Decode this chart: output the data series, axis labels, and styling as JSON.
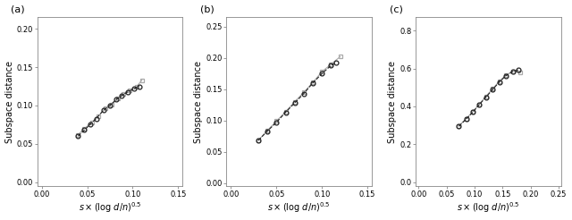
{
  "panels": [
    {
      "label": "(a)",
      "xlim": [
        -0.005,
        0.155
      ],
      "ylim": [
        -0.005,
        0.215
      ],
      "xticks": [
        0.0,
        0.05,
        0.1,
        0.15
      ],
      "yticks": [
        0.0,
        0.05,
        0.1,
        0.15,
        0.2
      ],
      "series": [
        {
          "x": [
            0.04,
            0.047,
            0.053,
            0.06,
            0.068,
            0.075,
            0.082,
            0.088,
            0.095,
            0.102,
            0.107
          ],
          "y": [
            0.06,
            0.068,
            0.075,
            0.083,
            0.094,
            0.1,
            0.108,
            0.113,
            0.118,
            0.122,
            0.125
          ],
          "color": "#222222",
          "marker": "o",
          "markersize": 3.5,
          "linewidth": 0.8,
          "linestyle": "--"
        },
        {
          "x": [
            0.04,
            0.047,
            0.055,
            0.062,
            0.07,
            0.077,
            0.084,
            0.09,
            0.097,
            0.104,
            0.11
          ],
          "y": [
            0.062,
            0.07,
            0.078,
            0.086,
            0.096,
            0.101,
            0.109,
            0.115,
            0.12,
            0.124,
            0.133
          ],
          "color": "#aaaaaa",
          "marker": "s",
          "markersize": 3.5,
          "linewidth": 0.8,
          "linestyle": "-"
        }
      ]
    },
    {
      "label": "(b)",
      "xlim": [
        -0.005,
        0.155
      ],
      "ylim": [
        -0.005,
        0.265
      ],
      "xticks": [
        0.0,
        0.05,
        0.1,
        0.15
      ],
      "yticks": [
        0.0,
        0.05,
        0.1,
        0.15,
        0.2,
        0.25
      ],
      "series": [
        {
          "x": [
            0.03,
            0.04,
            0.05,
            0.06,
            0.07,
            0.08,
            0.09,
            0.1,
            0.11,
            0.115
          ],
          "y": [
            0.068,
            0.083,
            0.097,
            0.113,
            0.128,
            0.143,
            0.16,
            0.175,
            0.188,
            0.192
          ],
          "color": "#222222",
          "marker": "o",
          "markersize": 3.5,
          "linewidth": 0.8,
          "linestyle": "--"
        },
        {
          "x": [
            0.03,
            0.04,
            0.05,
            0.06,
            0.07,
            0.08,
            0.09,
            0.1,
            0.11,
            0.12
          ],
          "y": [
            0.068,
            0.084,
            0.099,
            0.114,
            0.13,
            0.145,
            0.161,
            0.178,
            0.19,
            0.202
          ],
          "color": "#aaaaaa",
          "marker": "s",
          "markersize": 3.5,
          "linewidth": 0.8,
          "linestyle": "-"
        }
      ]
    },
    {
      "label": "(c)",
      "xlim": [
        -0.005,
        0.255
      ],
      "ylim": [
        -0.02,
        0.87
      ],
      "xticks": [
        0.0,
        0.05,
        0.1,
        0.15,
        0.2,
        0.25
      ],
      "yticks": [
        0.0,
        0.2,
        0.4,
        0.6,
        0.8
      ],
      "series": [
        {
          "x": [
            0.072,
            0.085,
            0.097,
            0.108,
            0.12,
            0.132,
            0.144,
            0.156,
            0.168,
            0.178
          ],
          "y": [
            0.295,
            0.333,
            0.37,
            0.408,
            0.448,
            0.488,
            0.528,
            0.562,
            0.583,
            0.592
          ],
          "color": "#222222",
          "marker": "o",
          "markersize": 3.5,
          "linewidth": 0.8,
          "linestyle": "--"
        },
        {
          "x": [
            0.072,
            0.085,
            0.097,
            0.108,
            0.12,
            0.132,
            0.144,
            0.156,
            0.168,
            0.182
          ],
          "y": [
            0.298,
            0.336,
            0.373,
            0.411,
            0.452,
            0.492,
            0.532,
            0.565,
            0.585,
            0.578
          ],
          "color": "#aaaaaa",
          "marker": "s",
          "markersize": 3.5,
          "linewidth": 0.8,
          "linestyle": "-"
        }
      ]
    }
  ],
  "ylabel": "Subspace distance",
  "xlabel_base": "s × (log d/n)",
  "background_color": "#ffffff",
  "figure_facecolor": "#ffffff",
  "spine_color": "#888888",
  "tick_labelsize": 6,
  "label_fontsize": 7,
  "panel_label_fontsize": 8
}
